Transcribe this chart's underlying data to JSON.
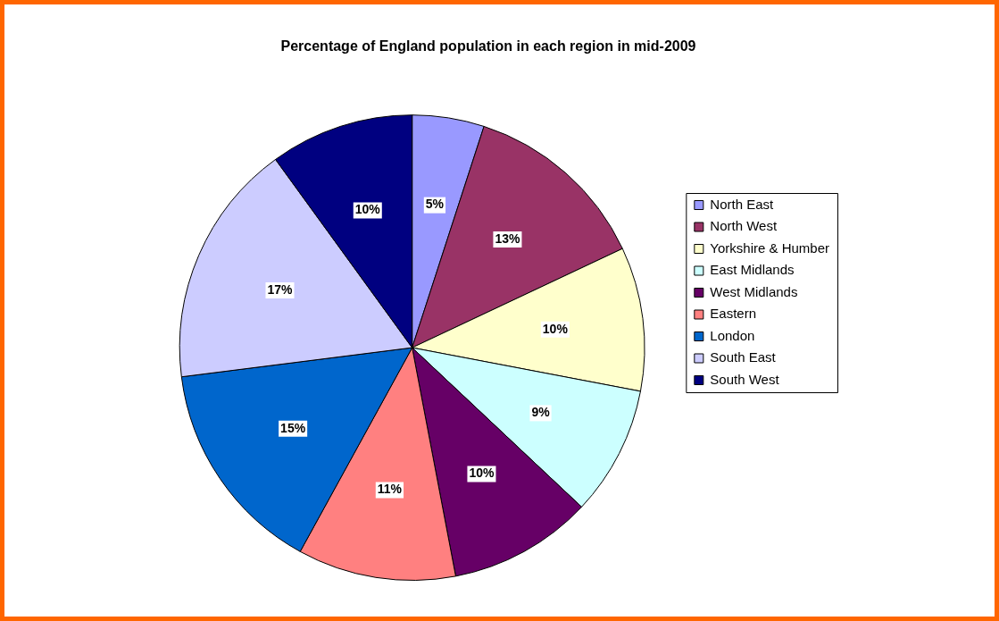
{
  "chart_data": {
    "type": "pie",
    "title": "Percentage of England population in each region in mid-2009",
    "categories": [
      "North East",
      "North West",
      "Yorkshire & Humber",
      "East Midlands",
      "West Midlands",
      "Eastern",
      "London",
      "South East",
      "South West"
    ],
    "values": [
      5,
      13,
      10,
      9,
      10,
      11,
      15,
      17,
      10
    ],
    "colors": [
      "#9999ff",
      "#993366",
      "#ffffcc",
      "#ccffff",
      "#660066",
      "#ff8080",
      "#0066cc",
      "#ccccff",
      "#000080"
    ],
    "value_labels": [
      "5%",
      "13%",
      "10%",
      "9%",
      "10%",
      "11%",
      "15%",
      "17%",
      "10%"
    ],
    "legend": "right"
  }
}
